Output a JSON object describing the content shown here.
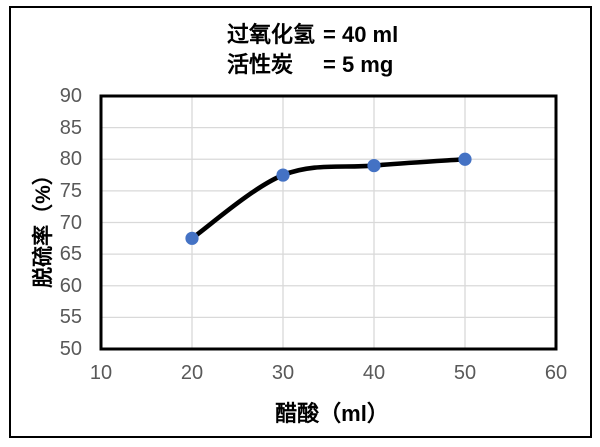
{
  "chart_data": {
    "type": "line",
    "title_lines": [
      {
        "label": "过氧化氢",
        "value": "= 40 ml"
      },
      {
        "label": "活性炭",
        "value": "= 5 mg"
      }
    ],
    "xlabel": "醋酸（ml）",
    "ylabel": "脱硫率（%）",
    "x": [
      20,
      30,
      40,
      50
    ],
    "y": [
      67.5,
      77.5,
      79,
      80
    ],
    "xlim": [
      10,
      60
    ],
    "ylim": [
      50,
      90
    ],
    "xticks": [
      10,
      20,
      30,
      40,
      50,
      60
    ],
    "yticks": [
      90,
      85,
      80,
      75,
      70,
      65,
      60,
      55,
      50
    ],
    "grid": true,
    "smoothed": true,
    "legend": "none",
    "colors": {
      "line": "#000000",
      "marker": "#4472C4",
      "grid": "#D9D9D9",
      "plot_border": "#000000",
      "tick_label": "#595959",
      "title_text": "#000000"
    }
  }
}
